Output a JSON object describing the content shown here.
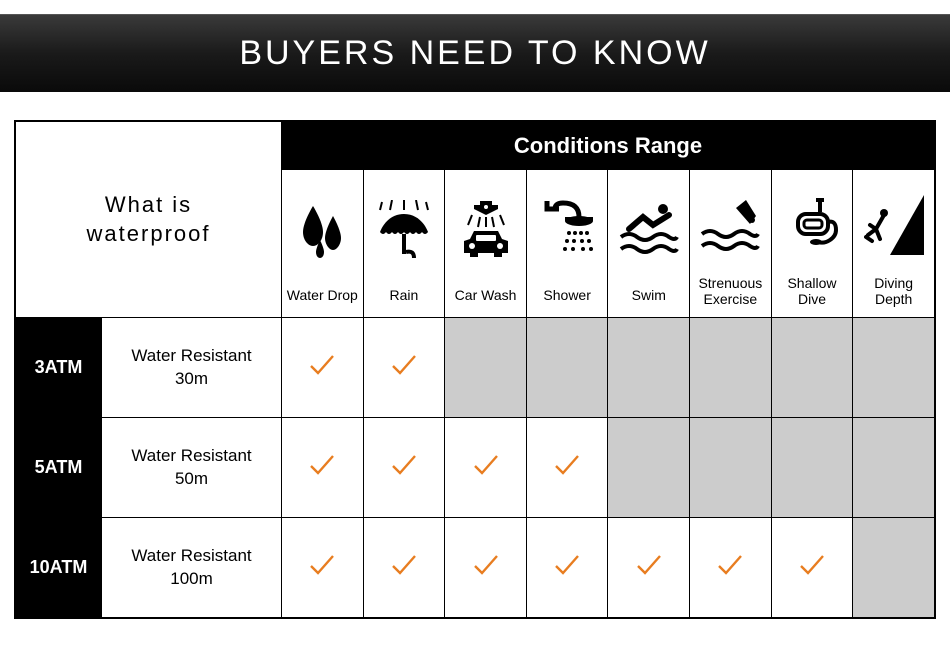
{
  "banner_title": "BUYERS NEED TO KNOW",
  "what_label_line1": "What is",
  "what_label_line2": "waterproof",
  "conditions_header": "Conditions Range",
  "colors": {
    "banner_bg_top": "#3a3a3a",
    "banner_bg_bottom": "#0a0a0a",
    "banner_text": "#ffffff",
    "header_bg": "#000000",
    "header_text": "#ffffff",
    "border": "#000000",
    "cell_bg": "#ffffff",
    "disabled_bg": "#cccccc",
    "check_color": "#e87d20",
    "text_color": "#000000",
    "title_fontsize": 34,
    "header_fontsize": 22,
    "what_fontsize": 22,
    "label_fontsize": 14,
    "rating_fontsize": 18,
    "desc_fontsize": 17
  },
  "conditions": [
    {
      "label": "Water Drop",
      "icon": "water-drop"
    },
    {
      "label": "Rain",
      "icon": "rain"
    },
    {
      "label": "Car Wash",
      "icon": "car-wash"
    },
    {
      "label": "Shower",
      "icon": "shower"
    },
    {
      "label": "Swim",
      "icon": "swim"
    },
    {
      "label": "Strenuous Exercise",
      "icon": "strenuous"
    },
    {
      "label": "Shallow Dive",
      "icon": "shallow-dive"
    },
    {
      "label": "Diving Depth",
      "icon": "diving-depth"
    }
  ],
  "rows": [
    {
      "rating": "3ATM",
      "desc_line1": "Water Resistant",
      "desc_line2": "30m",
      "supported": [
        true,
        true,
        false,
        false,
        false,
        false,
        false,
        false
      ]
    },
    {
      "rating": "5ATM",
      "desc_line1": "Water Resistant",
      "desc_line2": "50m",
      "supported": [
        true,
        true,
        true,
        true,
        false,
        false,
        false,
        false
      ]
    },
    {
      "rating": "10ATM",
      "desc_line1": "Water Resistant",
      "desc_line2": "100m",
      "supported": [
        true,
        true,
        true,
        true,
        true,
        true,
        true,
        false
      ]
    }
  ]
}
